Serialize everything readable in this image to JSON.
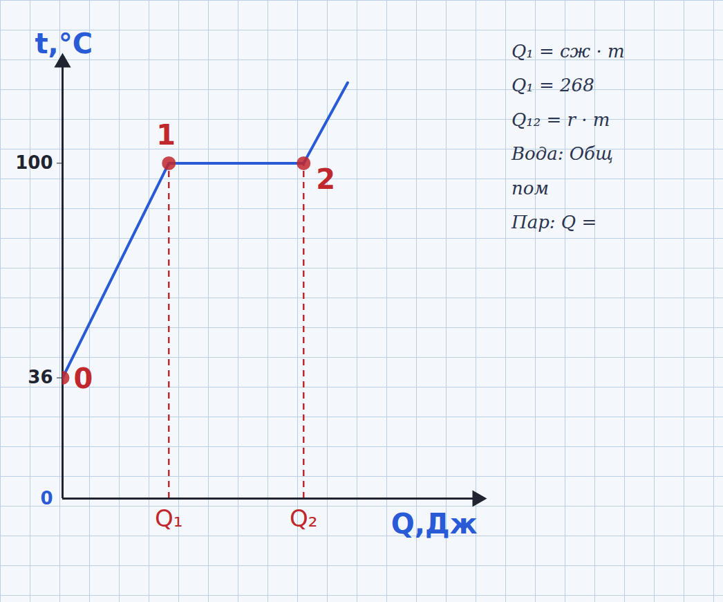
{
  "chart_data": {
    "type": "line",
    "x_label": "Q,Дж",
    "y_label": "t,°C",
    "x": [
      0,
      4.1,
      9.3,
      11
    ],
    "series": [
      {
        "name": "t",
        "color": "#2a5bd7",
        "values": [
          36,
          100,
          100,
          124
        ]
      }
    ],
    "point_labels": [
      "0",
      "1",
      "2",
      null
    ],
    "xlim": [
      0,
      16
    ],
    "ylim": [
      0,
      130
    ],
    "xticks": [
      {
        "value": 4.1,
        "label": "Q₁"
      },
      {
        "value": 9.3,
        "label": "Q₂"
      }
    ],
    "yticks": [
      0,
      36,
      100
    ],
    "annotations": [
      "Q₁ = cж · m",
      "Q₁ = 268",
      "Q₁₂ = r · m",
      "Вода: Общ",
      "пом",
      "Пар: Q ="
    ]
  }
}
